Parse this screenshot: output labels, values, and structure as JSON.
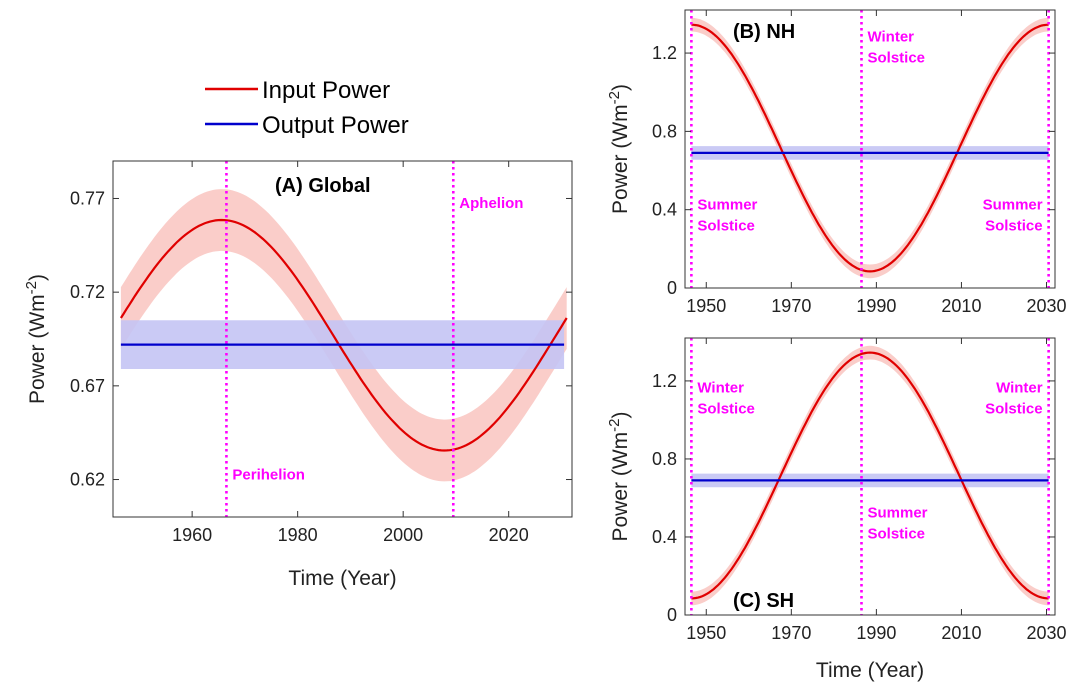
{
  "colors": {
    "input": "#e00000",
    "input_band": "#f9c4c0",
    "output": "#0000cc",
    "output_band": "#c4c4f4",
    "marker": "#ff00ff"
  },
  "legend": {
    "input_label": "Input Power",
    "output_label": "Output Power"
  },
  "chart_data": [
    {
      "id": "A",
      "type": "line",
      "title": "(A) Global",
      "xlabel": "Time (Year)",
      "ylabel": "Power (Wm",
      "ylabel_sup": "-2",
      "ylabel_close": ")",
      "xlim": [
        1945,
        2032
      ],
      "ylim": [
        0.6,
        0.79
      ],
      "xticks": [
        1960,
        1980,
        2000,
        2020
      ],
      "yticks": [
        0.62,
        0.67,
        0.72,
        0.77
      ],
      "series": [
        {
          "name": "Input Power",
          "kind": "sine",
          "start": 1946.5,
          "period": 84.5,
          "mean": 0.697,
          "amplitude": 0.0615,
          "phase": 0.15,
          "band": 0.0165
        },
        {
          "name": "Output Power",
          "kind": "constant",
          "start": 1946.5,
          "end": 2030.5,
          "value": 0.692,
          "band": 0.013
        }
      ],
      "vlines": [
        1966.5,
        2009.5
      ],
      "annotations": [
        {
          "text": "Perihelion",
          "x": 1966.5,
          "y": 0.62,
          "side": "right"
        },
        {
          "text": "Aphelion",
          "x": 2009.5,
          "y": 0.765,
          "side": "right"
        }
      ]
    },
    {
      "id": "B",
      "type": "line",
      "title": "(B) NH",
      "xlabel": "",
      "ylabel": "Power (Wm",
      "ylabel_sup": "-2",
      "ylabel_close": ")",
      "xlim": [
        1945,
        2032
      ],
      "ylim": [
        0,
        1.42
      ],
      "xticks": [
        1950,
        1970,
        1990,
        2010,
        2030
      ],
      "yticks": [
        0,
        0.4,
        0.8,
        1.2
      ],
      "series": [
        {
          "name": "Input Power",
          "kind": "cosine",
          "start": 1946.5,
          "end": 2030.5,
          "mean": 0.715,
          "amplitude": 0.63,
          "band": 0.035
        },
        {
          "name": "Output Power",
          "kind": "constant",
          "start": 1946.5,
          "end": 2030.5,
          "value": 0.69,
          "band": 0.035
        }
      ],
      "vlines": [
        1946.5,
        1986.5,
        2030.5
      ],
      "annotations": [
        {
          "lines": [
            "Summer",
            "Solstice"
          ],
          "x": 1946.5,
          "y": 0.4,
          "side": "right"
        },
        {
          "lines": [
            "Winter",
            "Solstice"
          ],
          "x": 1986.5,
          "y": 1.26,
          "side": "right"
        },
        {
          "lines": [
            "Summer",
            "Solstice"
          ],
          "x": 2030.5,
          "y": 0.4,
          "side": "left"
        }
      ]
    },
    {
      "id": "C",
      "type": "line",
      "title": "(C) SH",
      "xlabel": "Time (Year)",
      "ylabel": "Power (Wm",
      "ylabel_sup": "-2",
      "ylabel_close": ")",
      "xlim": [
        1945,
        2032
      ],
      "ylim": [
        0,
        1.42
      ],
      "xticks": [
        1950,
        1970,
        1990,
        2010,
        2030
      ],
      "yticks": [
        0,
        0.4,
        0.8,
        1.2
      ],
      "series": [
        {
          "name": "Input Power",
          "kind": "negcosine",
          "start": 1946.5,
          "end": 2030.5,
          "mean": 0.715,
          "amplitude": 0.63,
          "band": 0.035
        },
        {
          "name": "Output Power",
          "kind": "constant",
          "start": 1946.5,
          "end": 2030.5,
          "value": 0.69,
          "band": 0.035
        }
      ],
      "vlines": [
        1946.5,
        1986.5,
        2030.5
      ],
      "annotations": [
        {
          "lines": [
            "Winter",
            "Solstice"
          ],
          "x": 1946.5,
          "y": 1.14,
          "side": "right"
        },
        {
          "lines": [
            "Summer",
            "Solstice"
          ],
          "x": 1986.5,
          "y": 0.5,
          "side": "right"
        },
        {
          "lines": [
            "Winter",
            "Solstice"
          ],
          "x": 2030.5,
          "y": 1.14,
          "side": "left"
        }
      ]
    }
  ]
}
